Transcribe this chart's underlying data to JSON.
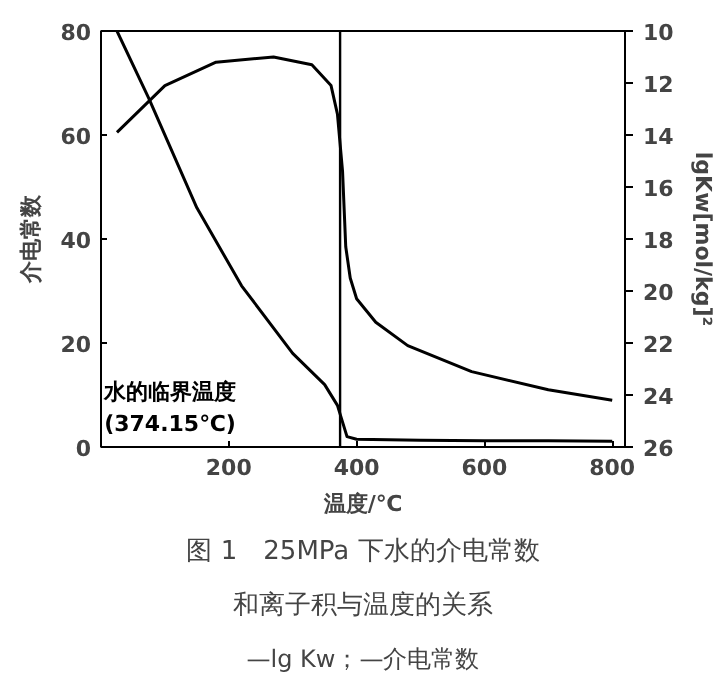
{
  "chart_data": {
    "type": "line",
    "title": "图 1　25MPa 下水的介电常数",
    "subtitle": "和离子积与温度的关系",
    "annotations": [
      "—lg Kw；—介电常数"
    ],
    "xlabel": "温度/℃",
    "ylabel": "介电常数",
    "y2label": "lgKw[mol/kg]²",
    "xlim": [
      0,
      820
    ],
    "xticks": [
      200,
      400,
      600,
      800
    ],
    "ylim": [
      0,
      80
    ],
    "yticks": [
      0,
      20,
      40,
      60,
      80
    ],
    "y2lim": [
      26,
      10
    ],
    "y2ticks": [
      10,
      12,
      14,
      16,
      18,
      20,
      22,
      24,
      26
    ],
    "grid": false,
    "marker": "none",
    "line_style": "solid",
    "ref_lines": [
      {
        "axis": "x",
        "value": 374.15,
        "label": "水的临界温度\n(374.15℃)",
        "color": "#000000"
      }
    ],
    "series": [
      {
        "color": "#000000",
        "x": [
          25,
          75,
          150,
          220,
          300,
          350,
          370,
          385,
          400,
          500,
          600,
          700,
          800
        ],
        "values": [
          80,
          67,
          46,
          31,
          18,
          12,
          8,
          2,
          1.5,
          1.3,
          1.2,
          1.2,
          1.1
        ]
      },
      {
        "color": "#000000",
        "axis": "y2",
        "x": [
          25,
          100,
          180,
          270,
          330,
          360,
          370,
          378,
          383,
          390,
          400,
          430,
          480,
          580,
          700,
          800
        ],
        "values": [
          13.9,
          12.1,
          11.2,
          11.0,
          11.3,
          12.1,
          13.2,
          15.4,
          18.3,
          19.5,
          20.3,
          21.2,
          22.1,
          23.1,
          23.8,
          24.2
        ]
      }
    ]
  }
}
